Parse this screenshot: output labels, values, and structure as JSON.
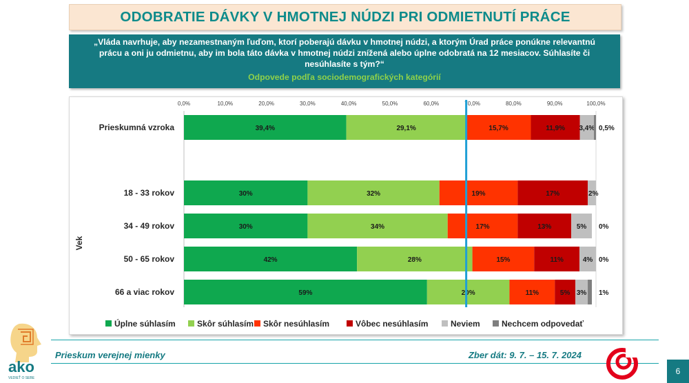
{
  "title": "ODOBRATIE DÁVKY V HMOTNEJ NÚDZI PRI ODMIETNUTÍ PRÁCE",
  "question": "„Vláda navrhuje, aby nezamestnaným ľuďom, ktorí poberajú dávku v hmotnej núdzi, a ktorým Úrad práce ponúkne relevantnú prácu a oni ju odmietnu, aby im bola táto dávka v hmotnej núdzi znížená alebo úplne odobratá na 12 mesiacov. Súhlasíte či nesúhlasíte s tým?“",
  "subtitle": "Odpovede podľa sociodemografických kategórií",
  "footer": {
    "left": "Prieskum verejnej mienky",
    "right": "Zber dát: 9. 7. – 15. 7. 2024",
    "page_number": "6"
  },
  "logo": {
    "text": "ako",
    "tagline": "VEDIEŤ O SEBE"
  },
  "chart_data": {
    "type": "bar",
    "orientation": "horizontal",
    "stacked": true,
    "xlim": [
      0,
      100
    ],
    "ticks": [
      "0,0%",
      "10,0%",
      "20,0%",
      "30,0%",
      "40,0%",
      "50,0%",
      "60,0%",
      "70,0%",
      "80,0%",
      "90,0%",
      "100,0%"
    ],
    "reference_line": 68.5,
    "group_label": "Vek",
    "colors": [
      "#0fa84f",
      "#92d050",
      "#ff3300",
      "#c00000",
      "#bfbfbf",
      "#7f7f7f"
    ],
    "series": [
      {
        "name": "Úplne súhlasím"
      },
      {
        "name": "Skôr súhlasím"
      },
      {
        "name": "Skôr nesúhlasím"
      },
      {
        "name": "Vôbec nesúhlasím"
      },
      {
        "name": "Neviem"
      },
      {
        "name": "Nechcem odpovedať"
      }
    ],
    "categories": [
      "Prieskumná vzroka",
      "18 - 33 rokov",
      "34 - 49 rokov",
      "50 - 65 rokov",
      "66 a viac rokov"
    ],
    "values": [
      [
        39.4,
        29.1,
        15.7,
        11.9,
        3.4,
        0.5
      ],
      [
        30,
        32,
        19,
        17,
        2,
        0
      ],
      [
        30,
        34,
        17,
        13,
        5,
        0
      ],
      [
        42,
        28,
        15,
        11,
        4,
        0
      ],
      [
        59,
        20,
        11,
        5,
        3,
        1
      ]
    ],
    "labels": [
      [
        "39,4%",
        "29,1%",
        "15,7%",
        "11,9%",
        "3,4%",
        "0,5%"
      ],
      [
        "30%",
        "32%",
        "19%",
        "17%",
        "2%",
        ""
      ],
      [
        "30%",
        "34%",
        "17%",
        "13%",
        "5%",
        "0%"
      ],
      [
        "42%",
        "28%",
        "15%",
        "11%",
        "4%",
        "0%"
      ],
      [
        "59%",
        "20%",
        "11%",
        "5%",
        "3%",
        "1%"
      ]
    ]
  }
}
